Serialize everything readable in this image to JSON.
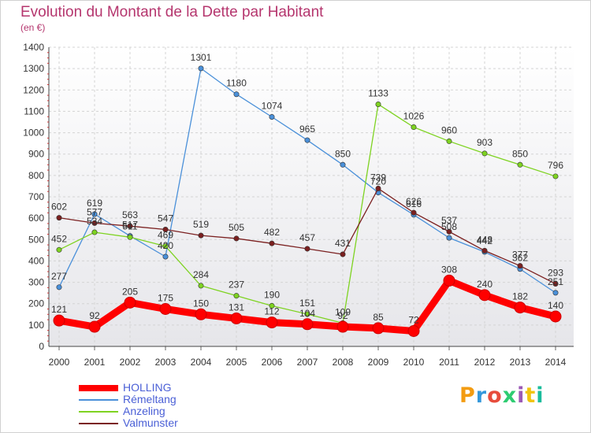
{
  "title": "Evolution du Montant de la Dette par Habitant",
  "unit_label": "(en €)",
  "logo_text": "Proxiti",
  "chart_data": {
    "type": "line",
    "title": "Evolution du Montant de la Dette par Habitant",
    "ylabel": "(en €)",
    "xlabel": "",
    "ylim": [
      0,
      1400
    ],
    "yticks": [
      0,
      100,
      200,
      300,
      400,
      500,
      600,
      700,
      800,
      900,
      1000,
      1100,
      1200,
      1300,
      1400
    ],
    "grid": true,
    "legend_position": "bottom-left",
    "x": [
      "2000",
      "2001",
      "2002",
      "2003",
      "2004",
      "2005",
      "2006",
      "2007",
      "2008",
      "2009",
      "2010",
      "2011",
      "2012",
      "2013",
      "2014"
    ],
    "series": [
      {
        "name": "HOLLING",
        "color": "#ff0000",
        "values": [
          121,
          92,
          205,
          175,
          150,
          131,
          112,
          104,
          92,
          85,
          72,
          308,
          240,
          182,
          140
        ]
      },
      {
        "name": "Rémeltang",
        "color": "#4a90d9",
        "values": [
          277,
          619,
          517,
          420,
          1301,
          1180,
          1074,
          965,
          850,
          720,
          616,
          508,
          442,
          362,
          251
        ]
      },
      {
        "name": "Anzeling",
        "color": "#7ed321",
        "values": [
          452,
          534,
          511,
          469,
          284,
          237,
          190,
          151,
          109,
          1133,
          1026,
          960,
          903,
          850,
          796
        ]
      },
      {
        "name": "Valmunster",
        "color": "#7b2020",
        "values": [
          602,
          577,
          563,
          547,
          519,
          505,
          482,
          457,
          431,
          739,
          626,
          537,
          448,
          377,
          293
        ]
      }
    ]
  }
}
